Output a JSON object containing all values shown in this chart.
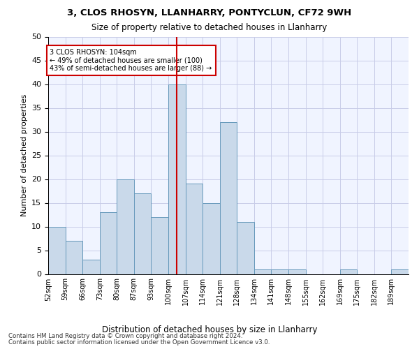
{
  "title1": "3, CLOS RHOSYN, LLANHARRY, PONTYCLUN, CF72 9WH",
  "title2": "Size of property relative to detached houses in Llanharry",
  "xlabel": "Distribution of detached houses by size in Llanharry",
  "ylabel": "Number of detached properties",
  "bin_labels": [
    "52sqm",
    "59sqm",
    "66sqm",
    "73sqm",
    "80sqm",
    "87sqm",
    "93sqm",
    "100sqm",
    "107sqm",
    "114sqm",
    "121sqm",
    "128sqm",
    "134sqm",
    "141sqm",
    "148sqm",
    "155sqm",
    "162sqm",
    "169sqm",
    "175sqm",
    "182sqm",
    "189sqm"
  ],
  "bar_values": [
    10,
    7,
    3,
    13,
    20,
    17,
    12,
    40,
    19,
    15,
    32,
    11,
    1,
    1,
    1,
    0,
    0,
    1,
    0,
    0,
    1
  ],
  "bar_facecolor": "#c9d9ea",
  "bar_edgecolor": "#6699bb",
  "vline_color": "#cc0000",
  "vline_bar_index": 7,
  "annotation_text": "3 CLOS RHOSYN: 104sqm\n← 49% of detached houses are smaller (100)\n43% of semi-detached houses are larger (88) →",
  "annotation_box_edgecolor": "#cc0000",
  "ylim": [
    0,
    50
  ],
  "yticks": [
    0,
    5,
    10,
    15,
    20,
    25,
    30,
    35,
    40,
    45,
    50
  ],
  "footer1": "Contains HM Land Registry data © Crown copyright and database right 2024.",
  "footer2": "Contains public sector information licensed under the Open Government Licence v3.0.",
  "bg_color": "#f0f4ff",
  "grid_color": "#c8cce8",
  "title1_fontsize": 9.5,
  "title2_fontsize": 8.5,
  "ylabel_fontsize": 8,
  "xtick_fontsize": 7,
  "ytick_fontsize": 8,
  "xlabel_fontsize": 8.5,
  "footer_fontsize": 6.2
}
